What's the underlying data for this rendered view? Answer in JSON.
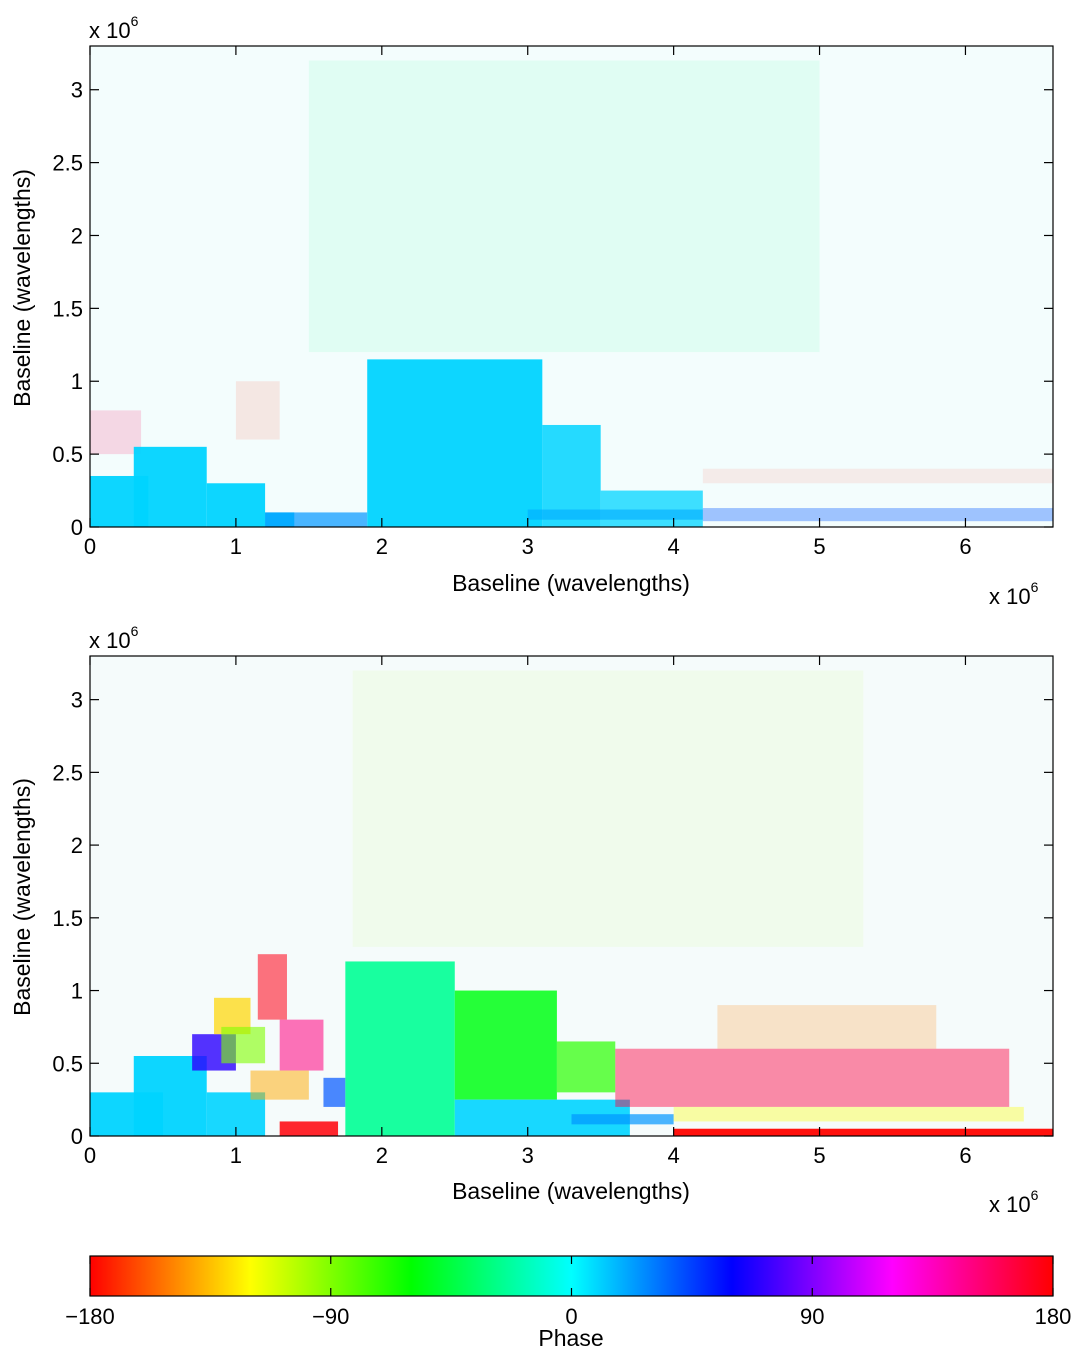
{
  "chart_data": [
    {
      "type": "heatmap",
      "title": "",
      "xlabel": "Baseline (wavelengths)",
      "ylabel": "Baseline (wavelengths)",
      "x_multiplier": "x 10",
      "x_multiplier_exp": "6",
      "y_multiplier": "x 10",
      "y_multiplier_exp": "6",
      "xlim": [
        0,
        6.6
      ],
      "ylim": [
        0,
        3.3
      ],
      "xticks": [
        "0",
        "1",
        "2",
        "3",
        "4",
        "5",
        "6"
      ],
      "xtick_values": [
        0,
        1,
        2,
        3,
        4,
        5,
        6
      ],
      "yticks": [
        "0",
        "0.5",
        "1",
        "1.5",
        "2",
        "2.5",
        "3"
      ],
      "ytick_values": [
        0,
        0.5,
        1,
        1.5,
        2,
        2.5,
        3
      ],
      "grid": false,
      "regions": [
        {
          "x0": 0.0,
          "x1": 0.35,
          "y0": 0.5,
          "y1": 0.8,
          "phase": 160,
          "opacity": 0.15
        },
        {
          "x0": 1.0,
          "x1": 1.3,
          "y0": 0.6,
          "y1": 1.0,
          "phase": -170,
          "opacity": 0.1
        },
        {
          "x0": 0.0,
          "x1": 0.4,
          "y0": 0.0,
          "y1": 0.35,
          "phase": 10,
          "opacity": 0.95
        },
        {
          "x0": 0.3,
          "x1": 0.8,
          "y0": 0.0,
          "y1": 0.55,
          "phase": 10,
          "opacity": 0.95
        },
        {
          "x0": 0.8,
          "x1": 1.2,
          "y0": 0.0,
          "y1": 0.3,
          "phase": 10,
          "opacity": 0.95
        },
        {
          "x0": 1.2,
          "x1": 1.9,
          "y0": 0.0,
          "y1": 0.1,
          "phase": 25,
          "opacity": 0.7
        },
        {
          "x0": 1.2,
          "x1": 1.4,
          "y0": 0.0,
          "y1": 0.1,
          "phase": 20,
          "opacity": 0.9
        },
        {
          "x0": 1.9,
          "x1": 3.1,
          "y0": 0.0,
          "y1": 1.15,
          "phase": 10,
          "opacity": 0.95
        },
        {
          "x0": 3.1,
          "x1": 3.5,
          "y0": 0.0,
          "y1": 0.7,
          "phase": 10,
          "opacity": 0.85
        },
        {
          "x0": 3.5,
          "x1": 4.2,
          "y0": 0.0,
          "y1": 0.25,
          "phase": 10,
          "opacity": 0.75
        },
        {
          "x0": 3.0,
          "x1": 4.2,
          "y0": 0.05,
          "y1": 0.12,
          "phase": 20,
          "opacity": 0.6
        },
        {
          "x0": 4.2,
          "x1": 6.6,
          "y0": 0.04,
          "y1": 0.13,
          "phase": 40,
          "opacity": 0.35
        },
        {
          "x0": 4.2,
          "x1": 6.6,
          "y0": 0.3,
          "y1": 0.4,
          "phase": -175,
          "opacity": 0.08
        },
        {
          "x0": 1.5,
          "x1": 5.0,
          "y0": 1.2,
          "y1": 3.2,
          "phase": -30,
          "opacity": 0.08
        }
      ]
    },
    {
      "type": "heatmap",
      "title": "",
      "xlabel": "Baseline (wavelengths)",
      "ylabel": "Baseline (wavelengths)",
      "x_multiplier": "x 10",
      "x_multiplier_exp": "6",
      "y_multiplier": "x 10",
      "y_multiplier_exp": "6",
      "xlim": [
        0,
        6.6
      ],
      "ylim": [
        0,
        3.3
      ],
      "xticks": [
        "0",
        "1",
        "2",
        "3",
        "4",
        "5",
        "6"
      ],
      "xtick_values": [
        0,
        1,
        2,
        3,
        4,
        5,
        6
      ],
      "yticks": [
        "0",
        "0.5",
        "1",
        "1.5",
        "2",
        "2.5",
        "3"
      ],
      "ytick_values": [
        0,
        0.5,
        1,
        1.5,
        2,
        2.5,
        3
      ],
      "grid": false,
      "regions": [
        {
          "x0": 0.0,
          "x1": 0.5,
          "y0": 0.0,
          "y1": 0.3,
          "phase": 10,
          "opacity": 0.95
        },
        {
          "x0": 0.3,
          "x1": 0.8,
          "y0": 0.0,
          "y1": 0.55,
          "phase": 10,
          "opacity": 0.95
        },
        {
          "x0": 0.8,
          "x1": 1.2,
          "y0": 0.0,
          "y1": 0.3,
          "phase": 10,
          "opacity": 0.9
        },
        {
          "x0": 0.7,
          "x1": 1.0,
          "y0": 0.45,
          "y1": 0.7,
          "phase": 70,
          "opacity": 0.8
        },
        {
          "x0": 0.85,
          "x1": 1.1,
          "y0": 0.7,
          "y1": 0.95,
          "phase": -130,
          "opacity": 0.7
        },
        {
          "x0": 0.9,
          "x1": 1.2,
          "y0": 0.5,
          "y1": 0.75,
          "phase": -90,
          "opacity": 0.6
        },
        {
          "x0": 1.15,
          "x1": 1.35,
          "y0": 0.8,
          "y1": 1.25,
          "phase": 175,
          "opacity": 0.55
        },
        {
          "x0": 1.3,
          "x1": 1.6,
          "y0": 0.45,
          "y1": 0.8,
          "phase": 150,
          "opacity": 0.55
        },
        {
          "x0": 1.1,
          "x1": 1.5,
          "y0": 0.25,
          "y1": 0.45,
          "phase": -140,
          "opacity": 0.5
        },
        {
          "x0": 1.3,
          "x1": 1.7,
          "y0": 0.0,
          "y1": 0.1,
          "phase": 178,
          "opacity": 0.85
        },
        {
          "x0": 1.6,
          "x1": 1.75,
          "y0": 0.2,
          "y1": 0.4,
          "phase": 40,
          "opacity": 0.7
        },
        {
          "x0": 1.75,
          "x1": 2.5,
          "y0": 0.0,
          "y1": 1.2,
          "phase": -25,
          "opacity": 0.9
        },
        {
          "x0": 2.5,
          "x1": 3.2,
          "y0": 0.25,
          "y1": 1.0,
          "phase": -55,
          "opacity": 0.85
        },
        {
          "x0": 3.2,
          "x1": 3.6,
          "y0": 0.3,
          "y1": 0.65,
          "phase": -70,
          "opacity": 0.7
        },
        {
          "x0": 2.5,
          "x1": 3.7,
          "y0": 0.0,
          "y1": 0.25,
          "phase": 10,
          "opacity": 0.9
        },
        {
          "x0": 3.3,
          "x1": 4.0,
          "y0": 0.08,
          "y1": 0.15,
          "phase": 25,
          "opacity": 0.7
        },
        {
          "x0": 3.6,
          "x1": 6.3,
          "y0": 0.2,
          "y1": 0.6,
          "phase": 165,
          "opacity": 0.45
        },
        {
          "x0": 4.3,
          "x1": 5.8,
          "y0": 0.6,
          "y1": 0.9,
          "phase": -150,
          "opacity": 0.2
        },
        {
          "x0": 4.0,
          "x1": 6.4,
          "y0": 0.1,
          "y1": 0.2,
          "phase": -120,
          "opacity": 0.35
        },
        {
          "x0": 4.0,
          "x1": 6.6,
          "y0": 0.0,
          "y1": 0.05,
          "phase": -179,
          "opacity": 0.95
        },
        {
          "x0": 1.8,
          "x1": 5.3,
          "y0": 1.3,
          "y1": 3.2,
          "phase": -100,
          "opacity": 0.06
        }
      ]
    }
  ],
  "colorbar": {
    "label": "Phase",
    "min": -180,
    "max": 180,
    "ticks": [
      "−180",
      "−90",
      "0",
      "90",
      "180"
    ],
    "tick_values": [
      -180,
      -90,
      0,
      90,
      180
    ]
  }
}
